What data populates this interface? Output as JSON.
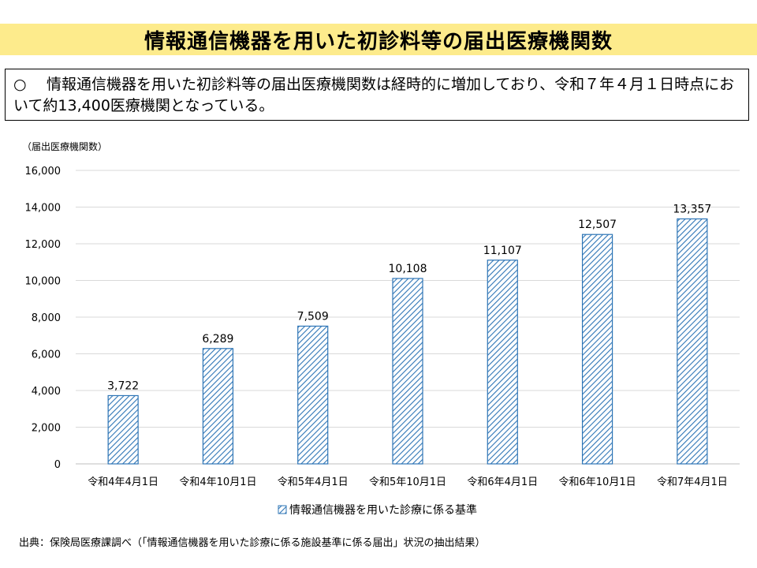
{
  "title": "情報通信機器を用いた初診料等の届出医療機関数",
  "summary": {
    "bullet": "○",
    "text": "情報通信機器を用いた初診料等の届出医療機関数は経時的に増加しており、令和７年４月１日時点において約13,400医療機関となっている。"
  },
  "chart_data": {
    "type": "bar",
    "ylabel": "（届出医療機関数）",
    "ylim": [
      0,
      16000
    ],
    "yticks": [
      0,
      2000,
      4000,
      6000,
      8000,
      10000,
      12000,
      14000,
      16000
    ],
    "ytick_labels": [
      "0",
      "2,000",
      "4,000",
      "6,000",
      "8,000",
      "10,000",
      "12,000",
      "14,000",
      "16,000"
    ],
    "grid": true,
    "categories": [
      "令和4年4月1日",
      "令和4年10月1日",
      "令和5年4月1日",
      "令和5年10月1日",
      "令和6年4月1日",
      "令和6年10月1日",
      "令和7年4月1日"
    ],
    "series": [
      {
        "name": "情報通信機器を用いた診療に係る基準",
        "values": [
          3722,
          6289,
          7509,
          10108,
          11107,
          12507,
          13357
        ],
        "labels": [
          "3,722",
          "6,289",
          "7,509",
          "10,108",
          "11,107",
          "12,507",
          "13,357"
        ]
      }
    ],
    "legend": "bottom-center",
    "colors": {
      "bar_stroke": "#2e75b6",
      "hatch": "#2e75b6",
      "grid": "#d9d9d9"
    }
  },
  "source": "出典：保険局医療課調べ（「情報通信機器を用いた診療に係る施設基準に係る届出」状況の抽出結果）"
}
